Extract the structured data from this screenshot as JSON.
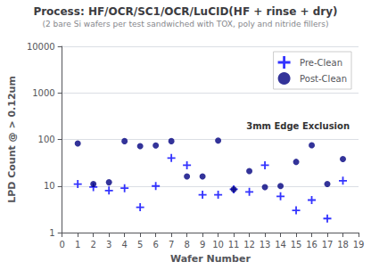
{
  "chart_data": {
    "type": "scatter",
    "title": "Process: HF/OCR/SC1/OCR/LuCID(HF + rinse + dry)",
    "subtitle": "(2 bare Si wafers per test sandwiched with TOX, poly and nitride fillers)",
    "xlabel": "Wafer Number",
    "ylabel": "LPD Count @ > 0.12um",
    "annotation": "3mm Edge Exclusion",
    "series": [
      {
        "name": "Pre-Clean",
        "color": "#0000FF",
        "marker": "plus",
        "x": [
          1,
          2,
          3,
          4,
          5,
          6,
          7,
          8,
          9,
          10,
          11,
          12,
          13,
          14,
          15,
          16,
          17,
          18
        ],
        "values": [
          11,
          9.5,
          8,
          9,
          3.5,
          10,
          40,
          28,
          6.5,
          6.5,
          8.5,
          7.5,
          28,
          6,
          3,
          5,
          2,
          13
        ]
      },
      {
        "name": "Post-Clean",
        "color": "#000080",
        "marker": "circle",
        "x": [
          1,
          2,
          3,
          4,
          5,
          6,
          7,
          8,
          9,
          10,
          11,
          12,
          13,
          14,
          15,
          16,
          17,
          18
        ],
        "values": [
          82,
          11,
          12,
          92,
          72,
          74,
          92,
          16,
          16,
          95,
          8.5,
          21,
          9.5,
          10,
          33,
          75,
          11,
          38
        ]
      }
    ],
    "xlim": [
      0,
      19
    ],
    "xticks": [
      0,
      1,
      2,
      3,
      4,
      5,
      6,
      7,
      8,
      9,
      10,
      11,
      12,
      13,
      14,
      15,
      16,
      17,
      18,
      19
    ],
    "ylim": [
      1,
      10000
    ],
    "yticks": [
      1,
      10,
      100,
      1000,
      10000
    ],
    "log": "y",
    "grid": "y",
    "legend": "upper right"
  }
}
